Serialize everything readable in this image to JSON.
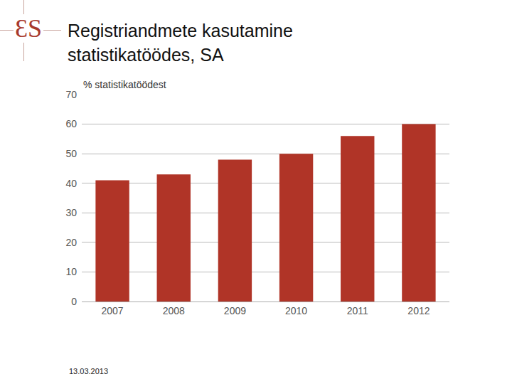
{
  "chart_data": {
    "type": "bar",
    "title": "Registriandmete kasutamine statistikatöödes, SA",
    "y_label": "% statistikatöödest",
    "categories": [
      "2007",
      "2008",
      "2009",
      "2010",
      "2011",
      "2012"
    ],
    "values": [
      41,
      43,
      48,
      50,
      56,
      60
    ],
    "color": "#b03427",
    "ylim": [
      0,
      70
    ],
    "yticks": [
      0,
      10,
      20,
      30,
      40,
      50,
      60,
      70
    ],
    "grid": true
  },
  "logo": "ƐS",
  "date": "13.03.2013"
}
